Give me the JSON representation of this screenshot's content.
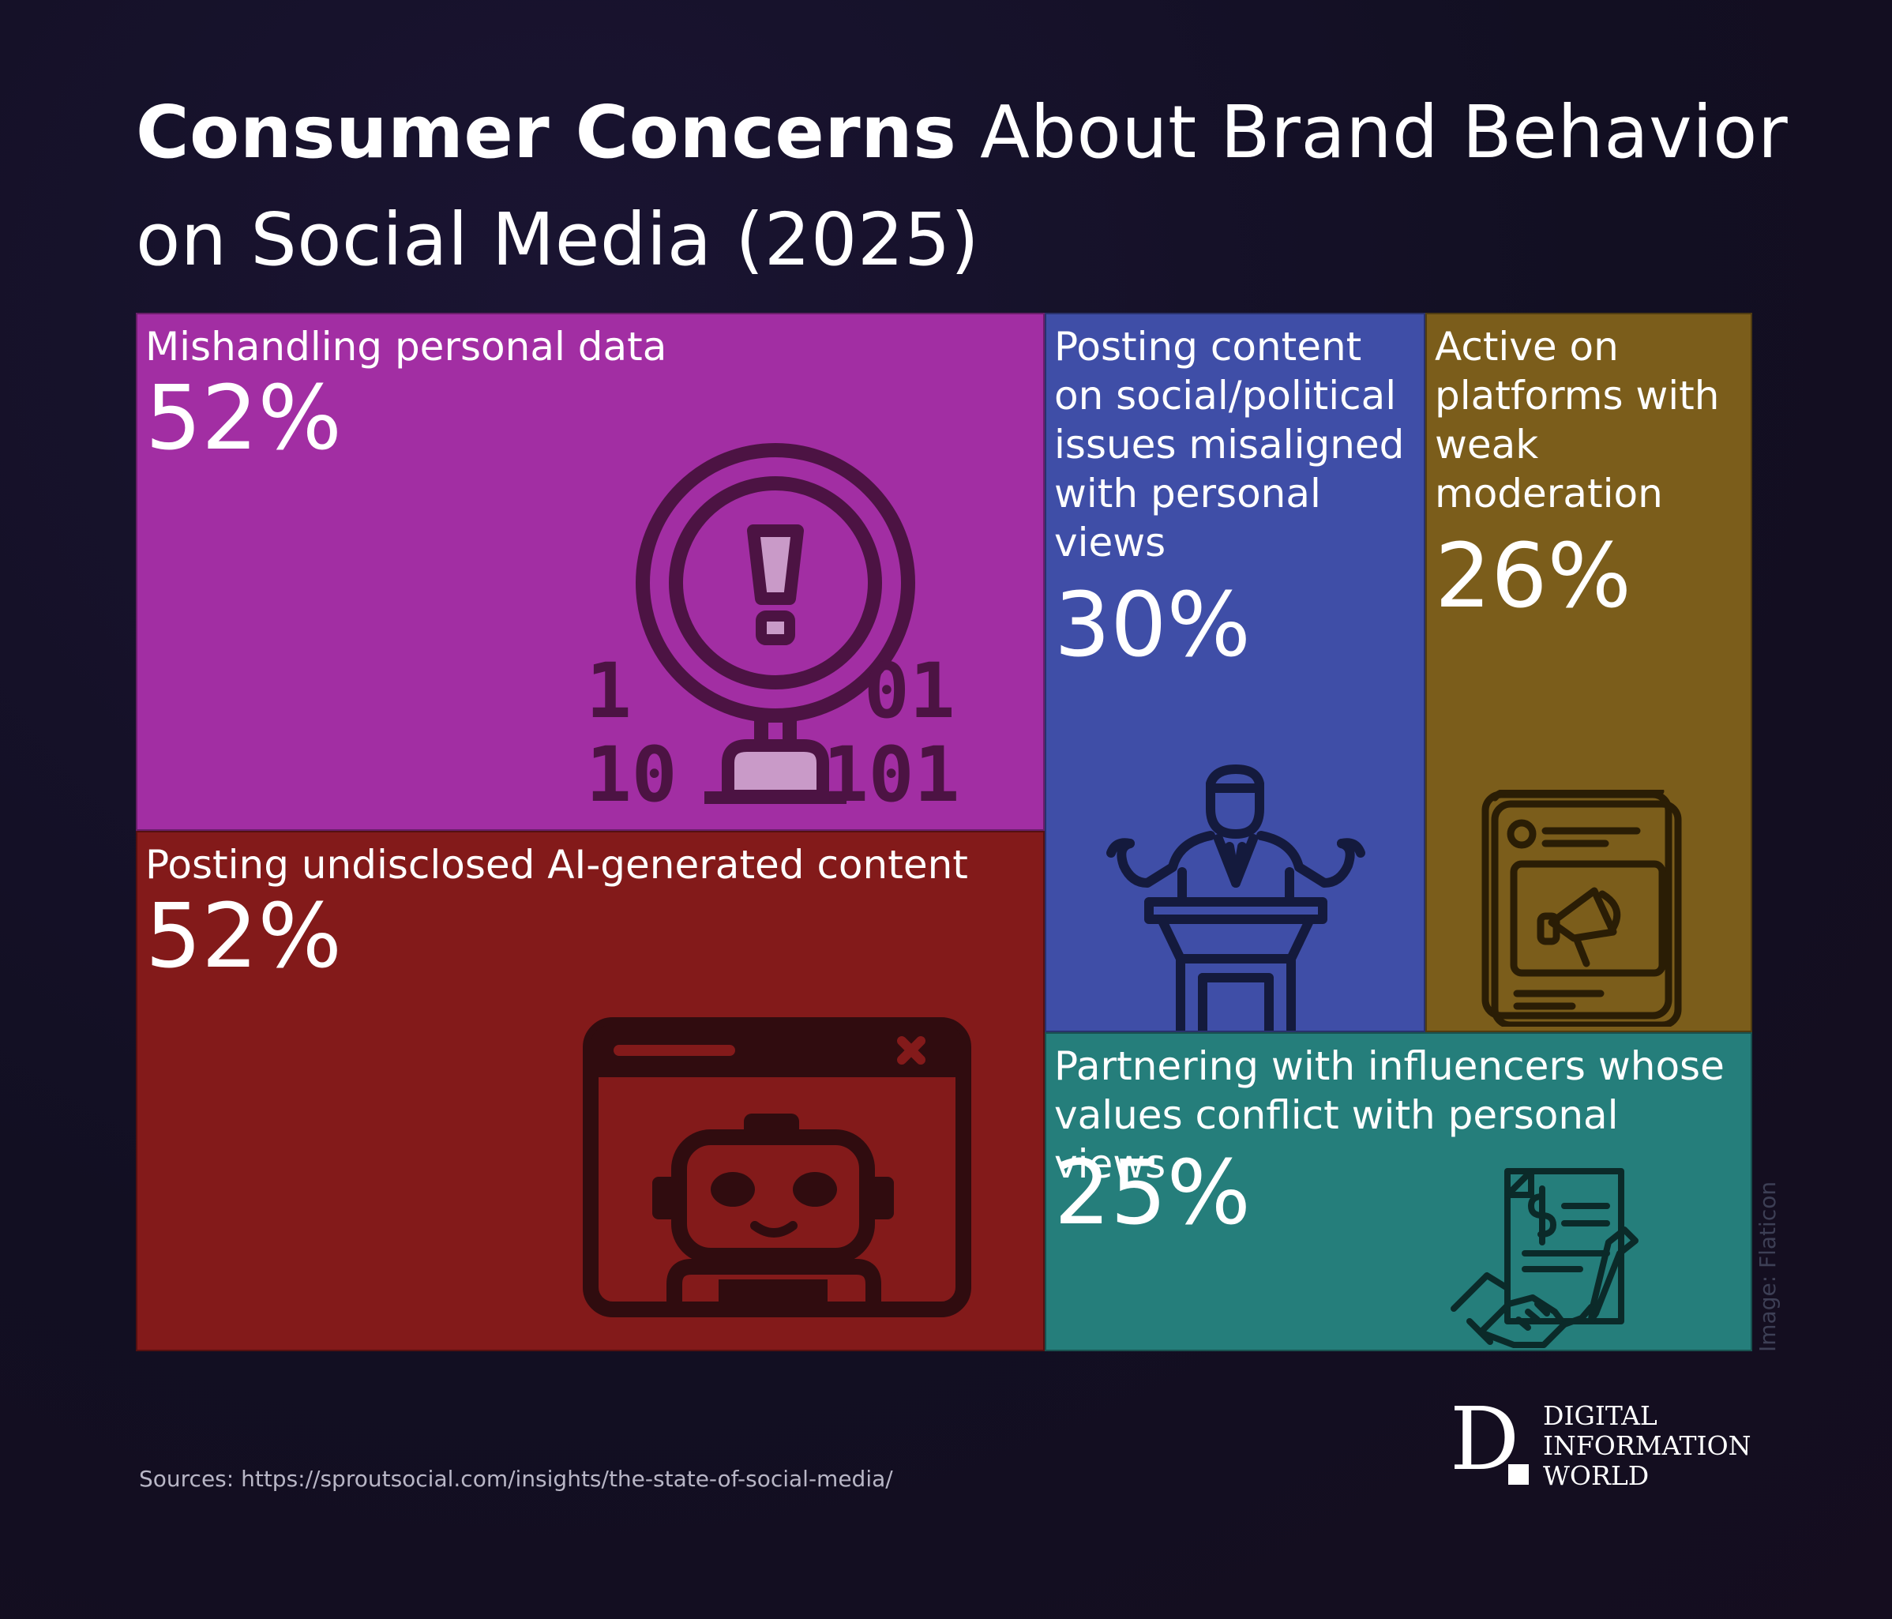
{
  "title": {
    "bold": "Consumer Concerns",
    "rest": " About Brand Behavior on Social Media (2025)"
  },
  "chart_data": {
    "type": "treemap",
    "unit": "%",
    "items": [
      {
        "label": "Mishandling personal data",
        "value": 52,
        "value_label": "52%",
        "color": "#a22ea3",
        "icon": "data-warning-icon"
      },
      {
        "label": "Posting undisclosed AI-generated content",
        "value": 52,
        "value_label": "52%",
        "color": "#831a1a",
        "icon": "ai-robot-window-icon"
      },
      {
        "label": "Posting content on social/political issues misaligned with personal views",
        "value": 30,
        "value_label": "30%",
        "color": "#3f4ea7",
        "icon": "speaker-podium-icon"
      },
      {
        "label": "Active on platforms with weak moderation",
        "value": 26,
        "value_label": "26%",
        "color": "#7b5d1b",
        "icon": "social-post-megaphone-icon"
      },
      {
        "label": "Partnering with influencers whose values conflict with personal views",
        "value": 25,
        "value_label": "25%",
        "color": "#257e7b",
        "icon": "contract-handshake-icon"
      }
    ]
  },
  "credit": "Image: Flaticon",
  "source": "Sources: https://sproutsocial.com/insights/the-state-of-social-media/",
  "logo": {
    "letter": "D",
    "lines": [
      "DIGITAL",
      "INFORMATION",
      "WORLD"
    ]
  }
}
